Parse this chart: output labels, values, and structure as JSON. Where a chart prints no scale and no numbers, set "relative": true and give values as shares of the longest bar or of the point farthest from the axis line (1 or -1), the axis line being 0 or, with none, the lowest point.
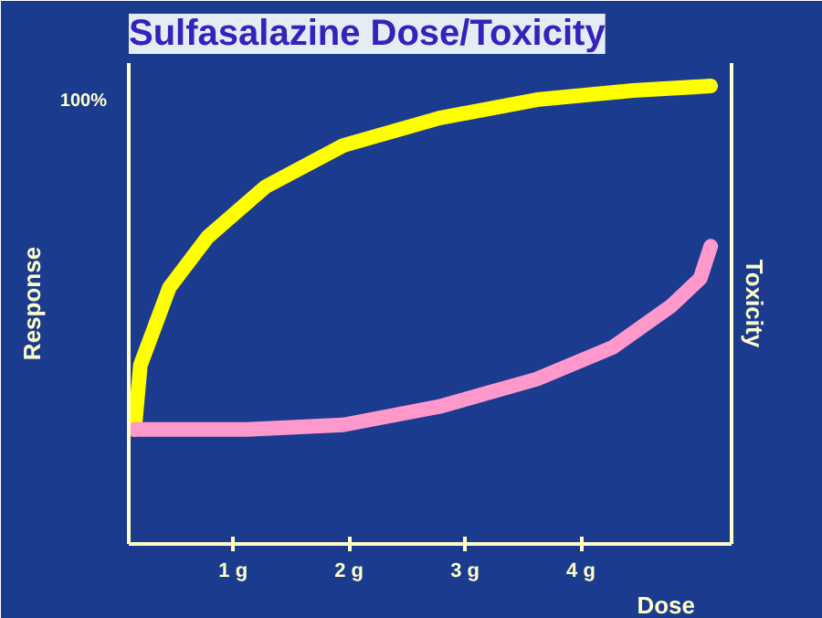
{
  "chart_data": {
    "type": "line",
    "title": "Sulfasalazine Dose/Toxicity",
    "xlabel": "Dose",
    "ylabel": "Response",
    "y2label": "Toxicity",
    "relative": true,
    "annotations": [
      "100%"
    ],
    "xlim": [
      0.1,
      5.3
    ],
    "xticks": [
      {
        "value": 1,
        "label": "1 g"
      },
      {
        "value": 2,
        "label": "2 g"
      },
      {
        "value": 3,
        "label": "3 g"
      },
      {
        "value": 4,
        "label": "4 g"
      }
    ],
    "grid": false,
    "marker": "none",
    "line_style": "solid",
    "series": [
      {
        "color": "#ffff00",
        "x": [
          0.15,
          0.2,
          0.45,
          0.78,
          1.28,
          1.95,
          2.78,
          3.62,
          4.45,
          5.12
        ],
        "values": [
          0.25,
          0.39,
          0.56,
          0.67,
          0.78,
          0.87,
          0.93,
          0.97,
          0.99,
          1.0
        ]
      },
      {
        "color": "#ff99cc",
        "axis": "y2",
        "x": [
          0.15,
          1.12,
          1.95,
          2.78,
          3.62,
          4.28,
          4.78,
          5.03,
          5.12
        ],
        "values": [
          0.25,
          0.25,
          0.26,
          0.3,
          0.36,
          0.43,
          0.52,
          0.58,
          0.65
        ]
      }
    ]
  }
}
